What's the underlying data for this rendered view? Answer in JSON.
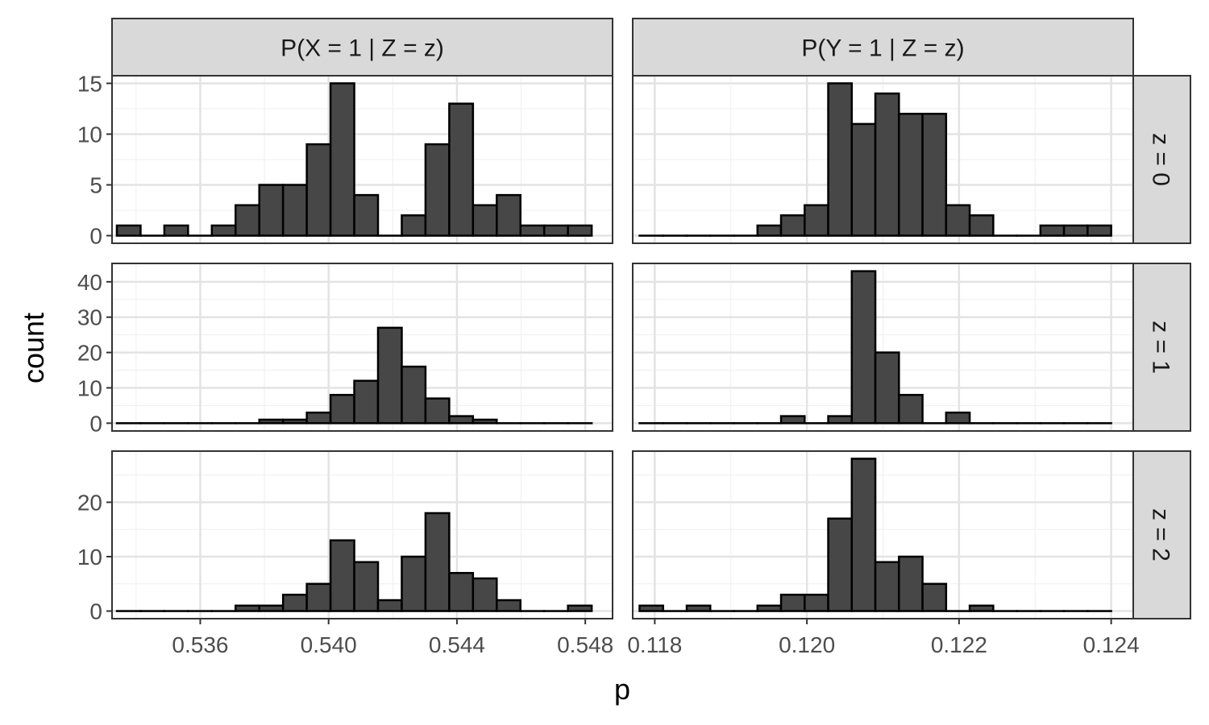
{
  "chart_data": {
    "type": "histogram-facet-grid",
    "xlabel": "p",
    "ylabel": "count",
    "col_labels": [
      "P(X = 1 | Z = z)",
      "P(Y = 1 | Z = z)"
    ],
    "row_labels": [
      "z = 0",
      "z = 1",
      "z = 2"
    ],
    "grid": true,
    "bar_fill": "#474747",
    "bar_stroke": "#000000",
    "columns": [
      {
        "x_range": [
          0.53325,
          0.54885
        ],
        "x_ticks": [
          0.536,
          0.54,
          0.544,
          0.548
        ],
        "x_tick_labels": [
          "0.536",
          "0.540",
          "0.544",
          "0.548"
        ],
        "bin_start": 0.5334,
        "bin_width": 0.00074
      },
      {
        "x_range": [
          0.11771,
          0.12429
        ],
        "x_ticks": [
          0.118,
          0.12,
          0.122,
          0.124
        ],
        "x_tick_labels": [
          "0.118",
          "0.120",
          "0.122",
          "0.124"
        ],
        "bin_start": 0.1178,
        "bin_width": 0.00031
      }
    ],
    "rows": [
      {
        "ylim": [
          -0.75,
          15.75
        ],
        "y_ticks": [
          0,
          5,
          10,
          15
        ],
        "y_tick_labels": [
          "0",
          "5",
          "10",
          "15"
        ],
        "counts": [
          [
            1,
            0,
            1,
            0,
            1,
            3,
            5,
            5,
            9,
            15,
            4,
            0,
            2,
            9,
            13,
            3,
            4,
            1,
            1,
            1
          ],
          [
            0,
            0,
            0,
            0,
            0,
            1,
            2,
            3,
            15,
            11,
            14,
            12,
            12,
            3,
            2,
            0,
            0,
            1,
            1,
            1
          ]
        ]
      },
      {
        "ylim": [
          -2.2,
          45.2
        ],
        "y_ticks": [
          0,
          10,
          20,
          30,
          40
        ],
        "y_tick_labels": [
          "0",
          "10",
          "20",
          "30",
          "40"
        ],
        "counts": [
          [
            0,
            0,
            0,
            0,
            0,
            0,
            1,
            1,
            3,
            8,
            12,
            27,
            16,
            7,
            2,
            1,
            0,
            0,
            0,
            0
          ],
          [
            0,
            0,
            0,
            0,
            0,
            0,
            2,
            0,
            2,
            43,
            20,
            8,
            0,
            3,
            0,
            0,
            0,
            0,
            0,
            0
          ]
        ]
      },
      {
        "ylim": [
          -1.4,
          29.4
        ],
        "y_ticks": [
          0,
          10,
          20
        ],
        "y_tick_labels": [
          "0",
          "10",
          "20"
        ],
        "counts": [
          [
            0,
            0,
            0,
            0,
            0,
            1,
            1,
            3,
            5,
            13,
            9,
            2,
            10,
            18,
            7,
            6,
            2,
            0,
            0,
            1
          ],
          [
            1,
            0,
            1,
            0,
            0,
            1,
            3,
            3,
            17,
            28,
            9,
            10,
            5,
            0,
            1,
            0,
            0,
            0,
            0,
            0
          ]
        ]
      }
    ]
  }
}
